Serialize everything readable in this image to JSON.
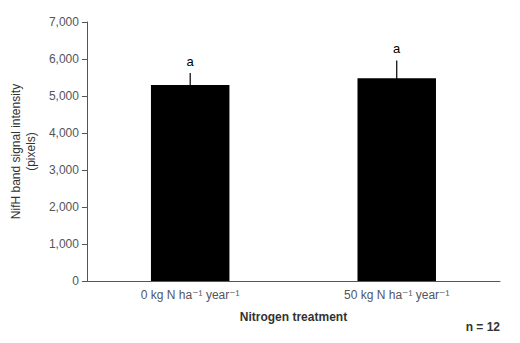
{
  "chart_data": {
    "type": "bar",
    "categories": [
      "0 kg N ha⁻¹ year⁻¹",
      "50 kg N ha⁻¹ year⁻¹"
    ],
    "values": [
      5300,
      5480
    ],
    "errors": [
      320,
      480
    ],
    "letters": [
      "a",
      "a"
    ],
    "color": "#000000",
    "xlabel": "Nitrogen treatment",
    "ylabel": "NifH band signal intensity\n(pixels)",
    "ylim": [
      0,
      7000
    ],
    "yticks": [
      0,
      1000,
      2000,
      3000,
      4000,
      5000,
      6000,
      7000
    ],
    "annotations": [
      "n = 12"
    ],
    "grid": false
  }
}
